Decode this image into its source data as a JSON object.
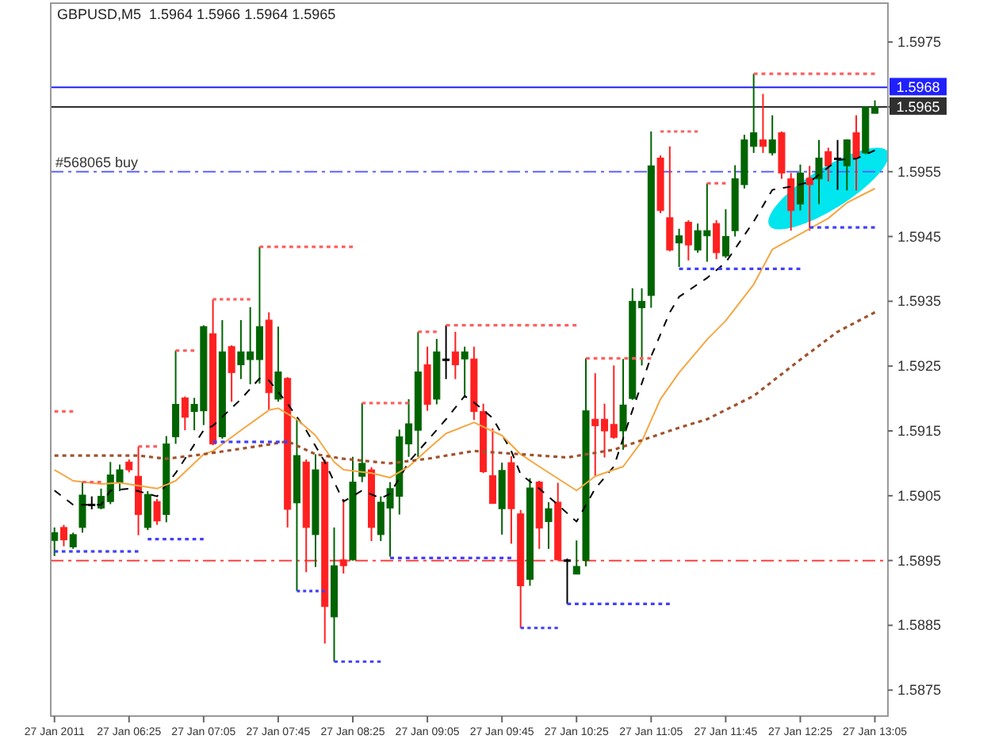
{
  "chart_data": {
    "type": "candlestick",
    "title": "GBPUSD,M5  1.5964 1.5966 1.5964 1.5965",
    "x": [
      "2011-01-27T05:45",
      "2011-01-27T05:50",
      "2011-01-27T05:55",
      "2011-01-27T06:00",
      "2011-01-27T06:05",
      "2011-01-27T06:10",
      "2011-01-27T06:15",
      "2011-01-27T06:20",
      "2011-01-27T06:25",
      "2011-01-27T06:30",
      "2011-01-27T06:35",
      "2011-01-27T06:40",
      "2011-01-27T06:45",
      "2011-01-27T06:50",
      "2011-01-27T06:55",
      "2011-01-27T07:00",
      "2011-01-27T07:05",
      "2011-01-27T07:10",
      "2011-01-27T07:15",
      "2011-01-27T07:20",
      "2011-01-27T07:25",
      "2011-01-27T07:30",
      "2011-01-27T07:35",
      "2011-01-27T07:40",
      "2011-01-27T07:45",
      "2011-01-27T07:50",
      "2011-01-27T07:55",
      "2011-01-27T08:00",
      "2011-01-27T08:05",
      "2011-01-27T08:10",
      "2011-01-27T08:15",
      "2011-01-27T08:20",
      "2011-01-27T08:25",
      "2011-01-27T08:30",
      "2011-01-27T08:35",
      "2011-01-27T08:40",
      "2011-01-27T08:45",
      "2011-01-27T08:50",
      "2011-01-27T08:55",
      "2011-01-27T09:00",
      "2011-01-27T09:05",
      "2011-01-27T09:10",
      "2011-01-27T09:15",
      "2011-01-27T09:20",
      "2011-01-27T09:25",
      "2011-01-27T09:30",
      "2011-01-27T09:35",
      "2011-01-27T09:40",
      "2011-01-27T09:45",
      "2011-01-27T09:50",
      "2011-01-27T09:55",
      "2011-01-27T10:00",
      "2011-01-27T10:05",
      "2011-01-27T10:10",
      "2011-01-27T10:15",
      "2011-01-27T10:20",
      "2011-01-27T10:25",
      "2011-01-27T10:30",
      "2011-01-27T10:35",
      "2011-01-27T10:40",
      "2011-01-27T10:45",
      "2011-01-27T10:50",
      "2011-01-27T10:55",
      "2011-01-27T11:00",
      "2011-01-27T11:05",
      "2011-01-27T11:10",
      "2011-01-27T11:15",
      "2011-01-27T11:20",
      "2011-01-27T11:25",
      "2011-01-27T11:30",
      "2011-01-27T11:35",
      "2011-01-27T11:40",
      "2011-01-27T11:45",
      "2011-01-27T11:50",
      "2011-01-27T11:55",
      "2011-01-27T12:00",
      "2011-01-27T12:05",
      "2011-01-27T12:10",
      "2011-01-27T12:15",
      "2011-01-27T12:20",
      "2011-01-27T12:25",
      "2011-01-27T12:30",
      "2011-01-27T12:35",
      "2011-01-27T12:40",
      "2011-01-27T12:45",
      "2011-01-27T12:50",
      "2011-01-27T12:55",
      "2011-01-27T13:00",
      "2011-01-27T13:05"
    ],
    "ohlc": [
      [
        1.58981,
        1.59001,
        1.58957,
        1.58993
      ],
      [
        1.59001,
        1.59005,
        1.58972,
        1.58982
      ],
      [
        1.58971,
        1.58993,
        1.58968,
        1.5899
      ],
      [
        1.59001,
        1.59071,
        1.58993,
        1.59051
      ],
      [
        1.59037,
        1.59049,
        1.59029,
        1.59037
      ],
      [
        1.59031,
        1.59061,
        1.59029,
        1.59049
      ],
      [
        1.59041,
        1.59102,
        1.59037,
        1.59082
      ],
      [
        1.5907,
        1.59098,
        1.59057,
        1.5909
      ],
      [
        1.59102,
        1.59106,
        1.59086,
        1.5909
      ],
      [
        1.5908,
        1.59126,
        1.58989,
        1.59021
      ],
      [
        1.59001,
        1.59057,
        1.58997,
        1.59052
      ],
      [
        1.59041,
        1.59045,
        1.59005,
        1.59011
      ],
      [
        1.59021,
        1.59142,
        1.59009,
        1.5913
      ],
      [
        1.59141,
        1.59274,
        1.5913,
        1.59191
      ],
      [
        1.59201,
        1.59203,
        1.59151,
        1.59171
      ],
      [
        1.5918,
        1.59201,
        1.59151,
        1.59191
      ],
      [
        1.59181,
        1.59313,
        1.59159,
        1.59311
      ],
      [
        1.593,
        1.59353,
        1.59128,
        1.5913
      ],
      [
        1.59141,
        1.59321,
        1.59138,
        1.59272
      ],
      [
        1.5928,
        1.59282,
        1.59195,
        1.5924
      ],
      [
        1.59252,
        1.59321,
        1.5923,
        1.59272
      ],
      [
        1.5926,
        1.59341,
        1.59222,
        1.59272
      ],
      [
        1.5926,
        1.59434,
        1.59223,
        1.59311
      ],
      [
        1.59321,
        1.59333,
        1.59183,
        1.59209
      ],
      [
        1.59199,
        1.59311,
        1.59195,
        1.59241
      ],
      [
        1.59231,
        1.59233,
        1.59001,
        1.59029
      ],
      [
        1.59039,
        1.59167,
        1.58903,
        1.59112
      ],
      [
        1.59102,
        1.59106,
        1.58932,
        1.59001
      ],
      [
        1.5899,
        1.59114,
        1.5894,
        1.5909
      ],
      [
        1.59102,
        1.59106,
        1.58822,
        1.58879
      ],
      [
        1.58863,
        1.59001,
        1.58794,
        1.58942
      ],
      [
        1.58951,
        1.59045,
        1.5893,
        1.58942
      ],
      [
        1.58951,
        1.5911,
        1.5895,
        1.59071
      ],
      [
        1.5908,
        1.59193,
        1.59071,
        1.591
      ],
      [
        1.5909,
        1.59094,
        1.5898,
        1.59001
      ],
      [
        1.5899,
        1.59049,
        1.5898,
        1.5904
      ],
      [
        1.59031,
        1.59071,
        1.58956,
        1.59061
      ],
      [
        1.59049,
        1.59152,
        1.59021,
        1.59141
      ],
      [
        1.5913,
        1.59199,
        1.5911,
        1.59161
      ],
      [
        1.59151,
        1.59303,
        1.5911,
        1.59241
      ],
      [
        1.59252,
        1.5928,
        1.59181,
        1.59191
      ],
      [
        1.59199,
        1.59292,
        1.59191,
        1.59272
      ],
      [
        1.59261,
        1.59313,
        1.5923,
        1.59261
      ],
      [
        1.59272,
        1.59303,
        1.5923,
        1.59252
      ],
      [
        1.59261,
        1.5928,
        1.59203,
        1.59272
      ],
      [
        1.59261,
        1.5928,
        1.59167,
        1.5918
      ],
      [
        1.5918,
        1.59192,
        1.59085,
        1.59087
      ],
      [
        1.59081,
        1.59154,
        1.59038,
        1.59038
      ],
      [
        1.5903,
        1.59101,
        1.5899,
        1.59089
      ],
      [
        1.59101,
        1.59111,
        1.58976,
        1.5903
      ],
      [
        1.59022,
        1.59028,
        1.58846,
        1.58911
      ],
      [
        1.58921,
        1.59077,
        1.58911,
        1.59062
      ],
      [
        1.59071,
        1.59073,
        1.58968,
        1.59
      ],
      [
        1.5901,
        1.5904,
        1.58968,
        1.5903
      ],
      [
        1.5904,
        1.5907,
        1.5895,
        1.58951
      ],
      [
        1.58951,
        1.58953,
        1.58883,
        1.58951
      ],
      [
        1.58929,
        1.58981,
        1.58929,
        1.58941
      ],
      [
        1.5895,
        1.59262,
        1.58941,
        1.59181
      ],
      [
        1.59168,
        1.59239,
        1.59079,
        1.59158
      ],
      [
        1.59168,
        1.59192,
        1.59109,
        1.5915
      ],
      [
        1.5916,
        1.59251,
        1.59138,
        1.5914
      ],
      [
        1.5915,
        1.59261,
        1.59121,
        1.5919
      ],
      [
        1.592,
        1.5937,
        1.59198,
        1.5935
      ],
      [
        1.5934,
        1.5937,
        1.59251,
        1.5935
      ],
      [
        1.59359,
        1.59612,
        1.5934,
        1.59559
      ],
      [
        1.59571,
        1.59575,
        1.59486,
        1.5949
      ],
      [
        1.59479,
        1.59589,
        1.59427,
        1.59429
      ],
      [
        1.5944,
        1.59462,
        1.59403,
        1.59451
      ],
      [
        1.59472,
        1.59475,
        1.59413,
        1.59437
      ],
      [
        1.59429,
        1.5947,
        1.59425,
        1.59459
      ],
      [
        1.59451,
        1.59532,
        1.59411,
        1.59459
      ],
      [
        1.5947,
        1.59475,
        1.59415,
        1.59425
      ],
      [
        1.5942,
        1.59492,
        1.59417,
        1.5945
      ],
      [
        1.59459,
        1.5956,
        1.5945,
        1.59539
      ],
      [
        1.5953,
        1.59607,
        1.59524,
        1.59599
      ],
      [
        1.59589,
        1.59701,
        1.59579,
        1.5961
      ],
      [
        1.59599,
        1.5967,
        1.59579,
        1.59589
      ],
      [
        1.59579,
        1.59637,
        1.59575,
        1.59599
      ],
      [
        1.5961,
        1.59612,
        1.59539,
        1.59548
      ],
      [
        1.59539,
        1.59548,
        1.59459,
        1.5949
      ],
      [
        1.595,
        1.59561,
        1.5949,
        1.59548
      ],
      [
        1.5954,
        1.59559,
        1.59459,
        1.5953
      ],
      [
        1.59539,
        1.59599,
        1.595,
        1.59571
      ],
      [
        1.59581,
        1.59587,
        1.59535,
        1.59559
      ],
      [
        1.59571,
        1.59599,
        1.59522,
        1.59571
      ],
      [
        1.59559,
        1.596,
        1.59521,
        1.59599
      ],
      [
        1.5961,
        1.59637,
        1.59521,
        1.59571
      ],
      [
        1.59579,
        1.59651,
        1.59577,
        1.5965
      ],
      [
        1.5964,
        1.5966,
        1.5964,
        1.5965
      ]
    ],
    "colors": [
      "#006400",
      "#ff2020",
      "#006400",
      "#006400",
      "#000000",
      "#006400",
      "#006400",
      "#006400",
      "#ff2020",
      "#ff2020",
      "#006400",
      "#ff2020",
      "#006400",
      "#006400",
      "#ff2020",
      "#006400",
      "#006400",
      "#ff2020",
      "#006400",
      "#ff2020",
      "#006400",
      "#006400",
      "#006400",
      "#ff2020",
      "#006400",
      "#ff2020",
      "#006400",
      "#ff2020",
      "#006400",
      "#ff2020",
      "#006400",
      "#ff2020",
      "#006400",
      "#006400",
      "#ff2020",
      "#006400",
      "#006400",
      "#006400",
      "#006400",
      "#006400",
      "#ff2020",
      "#006400",
      "#000000",
      "#ff2020",
      "#006400",
      "#ff2020",
      "#ff2020",
      "#ff2020",
      "#006400",
      "#ff2020",
      "#ff2020",
      "#006400",
      "#ff2020",
      "#006400",
      "#ff2020",
      "#000000",
      "#006400",
      "#006400",
      "#ff2020",
      "#ff2020",
      "#ff2020",
      "#006400",
      "#006400",
      "#006400",
      "#006400",
      "#ff2020",
      "#ff2020",
      "#006400",
      "#ff2020",
      "#006400",
      "#006400",
      "#ff2020",
      "#006400",
      "#006400",
      "#006400",
      "#006400",
      "#ff2020",
      "#006400",
      "#ff2020",
      "#ff2020",
      "#006400",
      "#ff2020",
      "#006400",
      "#ff2020",
      "#000000",
      "#006400",
      "#ff2020",
      "#006400",
      "#006400"
    ],
    "series": [
      {
        "type": "line",
        "color": "#000000",
        "line_style": "dashed",
        "x": [
          "2011-01-27T05:45",
          "2011-01-27T05:55",
          "2011-01-27T06:10",
          "2011-01-27T06:15",
          "2011-01-27T06:25",
          "2011-01-27T06:40",
          "2011-01-27T06:50",
          "2011-01-27T07:05",
          "2011-01-27T07:10",
          "2011-01-27T07:25",
          "2011-01-27T07:35",
          "2011-01-27T07:40",
          "2011-01-27T07:50",
          "2011-01-27T08:00",
          "2011-01-27T08:10",
          "2011-01-27T08:20",
          "2011-01-27T08:30",
          "2011-01-27T08:40",
          "2011-01-27T08:45",
          "2011-01-27T08:55",
          "2011-01-27T09:15",
          "2011-01-27T09:25",
          "2011-01-27T09:30",
          "2011-01-27T09:40",
          "2011-01-27T09:50",
          "2011-01-27T09:55",
          "2011-01-27T10:05",
          "2011-01-27T10:15",
          "2011-01-27T10:25",
          "2011-01-27T10:35",
          "2011-01-27T10:45",
          "2011-01-27T10:55",
          "2011-01-27T11:05",
          "2011-01-27T11:15",
          "2011-01-27T11:20",
          "2011-01-27T11:35",
          "2011-01-27T11:45",
          "2011-01-27T12:00",
          "2011-01-27T12:10",
          "2011-01-27T12:20",
          "2011-01-27T12:30",
          "2011-01-27T12:45",
          "2011-01-27T12:55",
          "2011-01-27T13:05"
        ],
        "values": [
          1.59058,
          1.59036,
          1.59036,
          1.59058,
          1.59061,
          1.59049,
          1.59085,
          1.59151,
          1.59158,
          1.59199,
          1.59231,
          1.59228,
          1.59192,
          1.59151,
          1.59102,
          1.59041,
          1.59058,
          1.59046,
          1.59053,
          1.59102,
          1.59168,
          1.59204,
          1.59194,
          1.5917,
          1.59119,
          1.59083,
          1.59061,
          1.59036,
          1.5901,
          1.59061,
          1.59095,
          1.59182,
          1.59265,
          1.59333,
          1.59357,
          1.59386,
          1.5941,
          1.59473,
          1.59522,
          1.59527,
          1.59534,
          1.59568,
          1.5957,
          1.59583
        ]
      },
      {
        "type": "line",
        "color": "#f5a742",
        "line_style": "solid",
        "x": [
          "2011-01-27T05:45",
          "2011-01-27T05:55",
          "2011-01-27T06:10",
          "2011-01-27T06:20",
          "2011-01-27T06:40",
          "2011-01-27T06:50",
          "2011-01-27T07:05",
          "2011-01-27T07:10",
          "2011-01-27T07:25",
          "2011-01-27T07:40",
          "2011-01-27T07:45",
          "2011-01-27T07:55",
          "2011-01-27T08:05",
          "2011-01-27T08:15",
          "2011-01-27T08:20",
          "2011-01-27T08:35",
          "2011-01-27T08:45",
          "2011-01-27T08:55",
          "2011-01-27T09:05",
          "2011-01-27T09:15",
          "2011-01-27T09:30",
          "2011-01-27T09:45",
          "2011-01-27T09:55",
          "2011-01-27T10:05",
          "2011-01-27T10:25",
          "2011-01-27T10:35",
          "2011-01-27T10:50",
          "2011-01-27T11:00",
          "2011-01-27T11:10",
          "2011-01-27T11:20",
          "2011-01-27T11:35",
          "2011-01-27T11:45",
          "2011-01-27T12:00",
          "2011-01-27T12:10",
          "2011-01-27T12:25",
          "2011-01-27T12:40",
          "2011-01-27T12:50",
          "2011-01-27T13:05"
        ],
        "values": [
          1.5909,
          1.59073,
          1.59068,
          1.5907,
          1.59061,
          1.59073,
          1.59114,
          1.59119,
          1.59151,
          1.59182,
          1.59185,
          1.59168,
          1.59143,
          1.59102,
          1.5909,
          1.59085,
          1.59078,
          1.59095,
          1.59121,
          1.59146,
          1.59163,
          1.59143,
          1.59114,
          1.59095,
          1.59058,
          1.5908,
          1.59095,
          1.59134,
          1.59199,
          1.5924,
          1.59291,
          1.5932,
          1.59376,
          1.5943,
          1.59454,
          1.59478,
          1.59502,
          1.59524
        ]
      },
      {
        "type": "line",
        "color": "#a0522d",
        "line_style": "dotted",
        "x": [
          "2011-01-27T05:45",
          "2011-01-27T06:30",
          "2011-01-27T06:45",
          "2011-01-27T07:05",
          "2011-01-27T07:40",
          "2011-01-27T07:50",
          "2011-01-27T08:05",
          "2011-01-27T08:20",
          "2011-01-27T08:45",
          "2011-01-27T09:05",
          "2011-01-27T09:30",
          "2011-01-27T09:55",
          "2011-01-27T10:20",
          "2011-01-27T10:45",
          "2011-01-27T11:20",
          "2011-01-27T11:35",
          "2011-01-27T12:00",
          "2011-01-27T12:25",
          "2011-01-27T12:45",
          "2011-01-27T13:05"
        ],
        "values": [
          1.59112,
          1.59112,
          1.59107,
          1.59114,
          1.59129,
          1.59134,
          1.59114,
          1.59107,
          1.591,
          1.59107,
          1.59119,
          1.59114,
          1.59109,
          1.59121,
          1.59155,
          1.59168,
          1.59204,
          1.5926,
          1.59303,
          1.59333
        ]
      },
      {
        "type": "line",
        "color": "#ff6060",
        "line_style": "dotted",
        "x": [
          "2011-01-27T05:45",
          "2011-01-27T05:55"
        ],
        "values": [
          1.5918,
          1.5918
        ]
      },
      {
        "type": "line",
        "color": "#ff6060",
        "line_style": "dotted",
        "x": [
          "2011-01-27T06:00",
          "2011-01-27T06:10"
        ],
        "values": [
          1.59071,
          1.59071
        ]
      },
      {
        "type": "line",
        "color": "#ff6060",
        "line_style": "dotted",
        "x": [
          "2011-01-27T06:30",
          "2011-01-27T06:40"
        ],
        "values": [
          1.59126,
          1.59126
        ]
      },
      {
        "type": "line",
        "color": "#ff6060",
        "line_style": "dotted",
        "x": [
          "2011-01-27T06:50",
          "2011-01-27T07:00"
        ],
        "values": [
          1.59274,
          1.59274
        ]
      },
      {
        "type": "line",
        "color": "#ff6060",
        "line_style": "dotted",
        "x": [
          "2011-01-27T07:10",
          "2011-01-27T07:30"
        ],
        "values": [
          1.59353,
          1.59353
        ]
      },
      {
        "type": "line",
        "color": "#ff6060",
        "line_style": "dotted",
        "x": [
          "2011-01-27T07:35",
          "2011-01-27T08:25"
        ],
        "values": [
          1.59434,
          1.59434
        ]
      },
      {
        "type": "line",
        "color": "#ff6060",
        "line_style": "dotted",
        "x": [
          "2011-01-27T08:30",
          "2011-01-27T08:55"
        ],
        "values": [
          1.59193,
          1.59193
        ]
      },
      {
        "type": "line",
        "color": "#ff6060",
        "line_style": "dotted",
        "x": [
          "2011-01-27T09:00",
          "2011-01-27T09:10"
        ],
        "values": [
          1.59303,
          1.59303
        ]
      },
      {
        "type": "line",
        "color": "#ff6060",
        "line_style": "dotted",
        "x": [
          "2011-01-27T09:15",
          "2011-01-27T10:25"
        ],
        "values": [
          1.59313,
          1.59313
        ]
      },
      {
        "type": "line",
        "color": "#ff6060",
        "line_style": "dotted",
        "x": [
          "2011-01-27T10:30",
          "2011-01-27T11:05"
        ],
        "values": [
          1.59262,
          1.59262
        ]
      },
      {
        "type": "line",
        "color": "#ff6060",
        "line_style": "dotted",
        "x": [
          "2011-01-27T11:10",
          "2011-01-27T11:30"
        ],
        "values": [
          1.59612,
          1.59612
        ]
      },
      {
        "type": "line",
        "color": "#ff6060",
        "line_style": "dotted",
        "x": [
          "2011-01-27T11:35",
          "2011-01-27T11:45"
        ],
        "values": [
          1.59532,
          1.59532
        ]
      },
      {
        "type": "line",
        "color": "#ff6060",
        "line_style": "dotted",
        "x": [
          "2011-01-27T12:00",
          "2011-01-27T13:05"
        ],
        "values": [
          1.59701,
          1.59701
        ]
      },
      {
        "type": "line",
        "color": "#4040ff",
        "line_style": "dotted",
        "x": [
          "2011-01-27T05:45",
          "2011-01-27T06:30"
        ],
        "values": [
          1.58964,
          1.58964
        ]
      },
      {
        "type": "line",
        "color": "#4040ff",
        "line_style": "dotted",
        "x": [
          "2011-01-27T06:35",
          "2011-01-27T07:05"
        ],
        "values": [
          1.58983,
          1.58983
        ]
      },
      {
        "type": "line",
        "color": "#4040ff",
        "line_style": "dotted",
        "x": [
          "2011-01-27T07:10",
          "2011-01-27T07:50"
        ],
        "values": [
          1.59133,
          1.59133
        ]
      },
      {
        "type": "line",
        "color": "#4040ff",
        "line_style": "dotted",
        "x": [
          "2011-01-27T07:55",
          "2011-01-27T08:10"
        ],
        "values": [
          1.58903,
          1.58903
        ]
      },
      {
        "type": "line",
        "color": "#4040ff",
        "line_style": "dotted",
        "x": [
          "2011-01-27T08:15",
          "2011-01-27T08:40"
        ],
        "values": [
          1.58794,
          1.58794
        ]
      },
      {
        "type": "line",
        "color": "#4040ff",
        "line_style": "dotted",
        "x": [
          "2011-01-27T08:45",
          "2011-01-27T09:50"
        ],
        "values": [
          1.58954,
          1.58954
        ]
      },
      {
        "type": "line",
        "color": "#4040ff",
        "line_style": "dotted",
        "x": [
          "2011-01-27T09:55",
          "2011-01-27T10:15"
        ],
        "values": [
          1.58846,
          1.58846
        ]
      },
      {
        "type": "line",
        "color": "#4040ff",
        "line_style": "dotted",
        "x": [
          "2011-01-27T10:20",
          "2011-01-27T11:15"
        ],
        "values": [
          1.58883,
          1.58883
        ]
      },
      {
        "type": "line",
        "color": "#4040ff",
        "line_style": "dotted",
        "x": [
          "2011-01-27T11:20",
          "2011-01-27T12:25"
        ],
        "values": [
          1.594,
          1.594
        ]
      },
      {
        "type": "line",
        "color": "#4040ff",
        "line_style": "dotted",
        "x": [
          "2011-01-27T12:30",
          "2011-01-27T13:05"
        ],
        "values": [
          1.59464,
          1.59464
        ]
      }
    ],
    "ref_lines": [
      {
        "axis": "y",
        "value": 1.5968,
        "label": "1.5968",
        "color": "#2020ff",
        "line_style": "solid"
      },
      {
        "axis": "y",
        "value": 1.5965,
        "label": "1.5965",
        "color": "#303030",
        "line_style": "solid"
      },
      {
        "axis": "y",
        "value": 1.5955,
        "label": "#568065 buy",
        "color": "#6060ff",
        "line_style": "dashed"
      },
      {
        "axis": "y",
        "value": 1.5895,
        "color": "#ff4040",
        "line_style": "dashed"
      }
    ],
    "xlim": [
      "2011-01-27T05:43",
      "2011-01-27T13:12"
    ],
    "xticks": [
      {
        "value": "2011-01-27T05:45",
        "label": "27 Jan 2011"
      },
      {
        "value": "2011-01-27T06:25",
        "label": "27 Jan 06:25"
      },
      {
        "value": "2011-01-27T07:05",
        "label": "27 Jan 07:05"
      },
      {
        "value": "2011-01-27T07:45",
        "label": "27 Jan 07:45"
      },
      {
        "value": "2011-01-27T08:25",
        "label": "27 Jan 08:25"
      },
      {
        "value": "2011-01-27T09:05",
        "label": "27 Jan 09:05"
      },
      {
        "value": "2011-01-27T09:45",
        "label": "27 Jan 09:45"
      },
      {
        "value": "2011-01-27T10:25",
        "label": "27 Jan 10:25"
      },
      {
        "value": "2011-01-27T11:05",
        "label": "27 Jan 11:05"
      },
      {
        "value": "2011-01-27T11:45",
        "label": "27 Jan 11:45"
      },
      {
        "value": "2011-01-27T12:25",
        "label": "27 Jan 12:25"
      },
      {
        "value": "2011-01-27T13:05",
        "label": "27 Jan 13:05"
      }
    ],
    "ylim": [
      1.5871,
      1.5981
    ],
    "yticks": [
      1.5875,
      1.5885,
      1.5895,
      1.5905,
      1.5915,
      1.5925,
      1.5935,
      1.5945,
      1.5955,
      {
        "value": 1.5965,
        "label": null
      },
      1.5975
    ]
  }
}
